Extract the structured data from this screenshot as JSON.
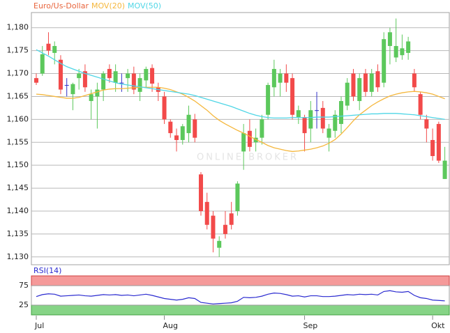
{
  "chart_data": [
    {
      "type": "candlestick",
      "name": "Euro/Us-Dollar",
      "name_color": "#e8643c",
      "watermark": "ONLINE BROKER",
      "categories": [
        "Jul",
        null,
        null,
        null,
        null,
        null,
        null,
        null,
        null,
        null,
        null,
        null,
        null,
        null,
        null,
        null,
        null,
        null,
        null,
        null,
        null,
        "Aug",
        null,
        null,
        null,
        null,
        null,
        null,
        null,
        null,
        null,
        null,
        null,
        null,
        null,
        null,
        null,
        null,
        null,
        null,
        null,
        null,
        null,
        null,
        "Sep",
        null,
        null,
        null,
        null,
        null,
        null,
        null,
        null,
        null,
        null,
        null,
        null,
        null,
        null,
        null,
        null,
        null,
        null,
        null,
        null,
        "Okt",
        null,
        null
      ],
      "open": [
        1.169,
        1.17,
        1.1765,
        1.1745,
        1.173,
        1.1675,
        1.1655,
        1.169,
        1.1705,
        1.164,
        1.165,
        1.1665,
        1.171,
        1.168,
        1.168,
        1.169,
        1.17,
        1.166,
        1.1685,
        1.1712,
        1.167,
        1.165,
        1.1595,
        1.1565,
        1.1555,
        1.157,
        1.16,
        1.148,
        1.142,
        1.139,
        1.132,
        1.137,
        1.1395,
        1.14,
        1.153,
        1.1575,
        1.155,
        1.156,
        1.161,
        1.167,
        1.168,
        1.17,
        1.169,
        1.1605,
        1.1605,
        1.158,
        1.162,
        1.1625,
        1.156,
        1.1575,
        1.159,
        1.163,
        1.17,
        1.164,
        1.17,
        1.166,
        1.1705,
        1.168,
        1.176,
        1.1735,
        1.174,
        1.1745,
        1.17,
        1.1655,
        1.16,
        1.1555,
        1.159,
        1.147
      ],
      "high": [
        1.17,
        1.176,
        1.179,
        1.177,
        1.174,
        1.169,
        1.168,
        1.171,
        1.172,
        1.1665,
        1.168,
        1.1705,
        1.172,
        1.172,
        1.17,
        1.171,
        1.1715,
        1.17,
        1.1715,
        1.172,
        1.168,
        1.166,
        1.16,
        1.158,
        1.159,
        1.163,
        1.1612,
        1.1485,
        1.144,
        1.14,
        1.1345,
        1.14,
        1.142,
        1.1465,
        1.159,
        1.16,
        1.158,
        1.161,
        1.168,
        1.173,
        1.171,
        1.172,
        1.17,
        1.163,
        1.161,
        1.164,
        1.166,
        1.164,
        1.159,
        1.162,
        1.165,
        1.169,
        1.171,
        1.17,
        1.171,
        1.171,
        1.172,
        1.179,
        1.18,
        1.182,
        1.1785,
        1.178,
        1.171,
        1.166,
        1.161,
        1.158,
        1.1595,
        1.154
      ],
      "low": [
        1.1675,
        1.1695,
        1.174,
        1.172,
        1.1655,
        1.165,
        1.162,
        1.1665,
        1.166,
        1.16,
        1.158,
        1.164,
        1.168,
        1.166,
        1.166,
        1.166,
        1.1655,
        1.164,
        1.167,
        1.166,
        1.164,
        1.159,
        1.156,
        1.153,
        1.1545,
        1.155,
        1.155,
        1.139,
        1.136,
        1.131,
        1.13,
        1.134,
        1.136,
        1.139,
        1.149,
        1.153,
        1.153,
        1.1545,
        1.16,
        1.165,
        1.165,
        1.166,
        1.16,
        1.159,
        1.153,
        1.155,
        1.158,
        1.157,
        1.153,
        1.156,
        1.157,
        1.162,
        1.164,
        1.162,
        1.165,
        1.165,
        1.166,
        1.167,
        1.172,
        1.1725,
        1.173,
        1.173,
        1.166,
        1.16,
        1.155,
        1.151,
        1.1505,
        1.147
      ],
      "close": [
        1.168,
        1.1742,
        1.175,
        1.176,
        1.1665,
        1.1675,
        1.1677,
        1.17,
        1.167,
        1.1655,
        1.1665,
        1.17,
        1.169,
        1.1705,
        1.168,
        1.17,
        1.1665,
        1.169,
        1.171,
        1.1678,
        1.166,
        1.16,
        1.157,
        1.1555,
        1.1585,
        1.161,
        1.156,
        1.14,
        1.137,
        1.134,
        1.1335,
        1.135,
        1.137,
        1.146,
        1.157,
        1.154,
        1.156,
        1.16,
        1.1675,
        1.171,
        1.17,
        1.168,
        1.161,
        1.162,
        1.157,
        1.162,
        1.162,
        1.158,
        1.158,
        1.161,
        1.164,
        1.168,
        1.165,
        1.169,
        1.166,
        1.17,
        1.167,
        1.1775,
        1.179,
        1.176,
        1.1755,
        1.177,
        1.167,
        1.161,
        1.158,
        1.152,
        1.151,
        1.151
      ],
      "up_color": "#5cc85c",
      "down_color": "#f24a4a",
      "doji_color": "#3030c8",
      "lines": [
        {
          "name": "MOV(20)",
          "color": "#f5b73c",
          "values": [
            1.1655,
            1.1654,
            1.1652,
            1.165,
            1.1648,
            1.1646,
            1.1646,
            1.1648,
            1.1652,
            1.1656,
            1.166,
            1.1664,
            1.1666,
            1.1667,
            1.1667,
            1.1668,
            1.1669,
            1.167,
            1.167,
            1.167,
            1.167,
            1.1668,
            1.1665,
            1.166,
            1.1655,
            1.1648,
            1.164,
            1.163,
            1.162,
            1.1608,
            1.1598,
            1.159,
            1.1583,
            1.1576,
            1.157,
            1.1563,
            1.1556,
            1.155,
            1.1543,
            1.1538,
            1.1535,
            1.1532,
            1.153,
            1.1531,
            1.1533,
            1.1535,
            1.1538,
            1.1542,
            1.1548,
            1.1556,
            1.1568,
            1.1582,
            1.1597,
            1.161,
            1.162,
            1.163,
            1.1638,
            1.1645,
            1.1651,
            1.1655,
            1.1658,
            1.166,
            1.1661,
            1.166,
            1.1658,
            1.1655,
            1.165,
            1.1645
          ]
        },
        {
          "name": "MOV(50)",
          "color": "#4fd6e6",
          "values": [
            1.1752,
            1.1745,
            1.1738,
            1.173,
            1.1722,
            1.1715,
            1.171,
            1.1705,
            1.17,
            1.1696,
            1.1692,
            1.1688,
            1.1684,
            1.168,
            1.1677,
            1.1675,
            1.1673,
            1.1671,
            1.1669,
            1.1667,
            1.1665,
            1.1663,
            1.1661,
            1.1659,
            1.1657,
            1.1655,
            1.1652,
            1.1648,
            1.1644,
            1.164,
            1.1636,
            1.1632,
            1.1628,
            1.1623,
            1.1618,
            1.1613,
            1.1609,
            1.1606,
            1.1604,
            1.1603,
            1.1603,
            1.1603,
            1.1604,
            1.1604,
            1.1604,
            1.1604,
            1.1605,
            1.1605,
            1.1605,
            1.1606,
            1.1607,
            1.1608,
            1.1609,
            1.161,
            1.1611,
            1.1612,
            1.1612,
            1.1613,
            1.1613,
            1.1613,
            1.1612,
            1.1611,
            1.161,
            1.1608,
            1.1606,
            1.1604,
            1.1602,
            1.16
          ]
        }
      ],
      "ylim": [
        1.1283,
        1.1833
      ],
      "yticks": [
        {
          "value": 1.13,
          "label": "1,130"
        },
        {
          "value": 1.135,
          "label": "1,135"
        },
        {
          "value": 1.14,
          "label": "1,140"
        },
        {
          "value": 1.145,
          "label": "1,145"
        },
        {
          "value": 1.15,
          "label": "1,150"
        },
        {
          "value": 1.155,
          "label": "1,155"
        },
        {
          "value": 1.16,
          "label": "1,160"
        },
        {
          "value": 1.165,
          "label": "1,165"
        },
        {
          "value": 1.17,
          "label": "1,170"
        },
        {
          "value": 1.175,
          "label": "1,175"
        },
        {
          "value": 1.18,
          "label": "1,180"
        }
      ],
      "grid": true
    },
    {
      "type": "line",
      "series": [
        {
          "name": "RSI(14)",
          "color": "#2a2ad0",
          "values": [
            47,
            52,
            54,
            53,
            48,
            49,
            50,
            51,
            49,
            48,
            50,
            52,
            51,
            52,
            50,
            51,
            49,
            51,
            53,
            50,
            46,
            42,
            40,
            38,
            40,
            44,
            42,
            32,
            30,
            28,
            29,
            30,
            31,
            35,
            45,
            44,
            45,
            48,
            53,
            56,
            55,
            52,
            48,
            49,
            46,
            49,
            49,
            47,
            47,
            48,
            50,
            52,
            51,
            53,
            52,
            53,
            51,
            60,
            62,
            59,
            58,
            60,
            50,
            44,
            42,
            38,
            37,
            36
          ]
        }
      ],
      "ylim": [
        0,
        100
      ],
      "yticks": [
        25,
        75
      ],
      "overbought_color": "#f59a9a",
      "oversold_color": "#86d486"
    }
  ]
}
